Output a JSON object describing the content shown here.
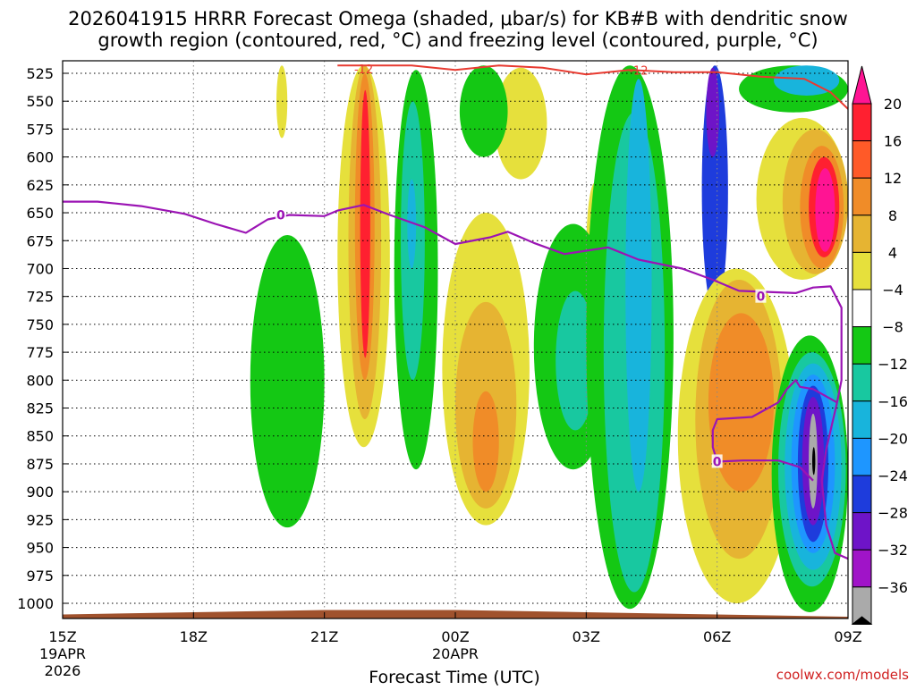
{
  "chart_data": {
    "type": "heatmap",
    "title": {
      "line1": "2026041915 HRRR Forecast Omega (shaded, μbar/s) for KB#B with dendritic snow",
      "line2": "growth region (contoured, red, °C) and freezing level (contoured, purple, °C)"
    },
    "xlabel": "Forecast Time (UTC)",
    "credit": "coolwx.com/models",
    "x_range_hours": [
      0,
      18
    ],
    "y_range_mb": [
      518,
      1015
    ],
    "y_ticks": [
      {
        "p": 525,
        "label": "525"
      },
      {
        "p": 550,
        "label": "550"
      },
      {
        "p": 575,
        "label": "575"
      },
      {
        "p": 600,
        "label": "600"
      },
      {
        "p": 625,
        "label": "625"
      },
      {
        "p": 650,
        "label": "650"
      },
      {
        "p": 675,
        "label": "675"
      },
      {
        "p": 700,
        "label": "700"
      },
      {
        "p": 725,
        "label": "725"
      },
      {
        "p": 750,
        "label": "750"
      },
      {
        "p": 775,
        "label": "775"
      },
      {
        "p": 800,
        "label": "800"
      },
      {
        "p": 825,
        "label": "825"
      },
      {
        "p": 850,
        "label": "850"
      },
      {
        "p": 875,
        "label": "875"
      },
      {
        "p": 900,
        "label": "900"
      },
      {
        "p": 925,
        "label": "925"
      },
      {
        "p": 950,
        "label": "950"
      },
      {
        "p": 975,
        "label": "975"
      },
      {
        "p": 1000,
        "label": "1000"
      }
    ],
    "x_ticks": [
      {
        "h": 0,
        "label": "15Z",
        "date": "19APR",
        "year": "2026"
      },
      {
        "h": 3,
        "label": "18Z"
      },
      {
        "h": 6,
        "label": "21Z"
      },
      {
        "h": 9,
        "label": "00Z",
        "date": "20APR"
      },
      {
        "h": 12,
        "label": "03Z"
      },
      {
        "h": 15,
        "label": "06Z"
      },
      {
        "h": 18,
        "label": "09Z"
      }
    ],
    "colorbar": {
      "colors": [
        "#ff1493",
        "#ff2030",
        "#ff5a28",
        "#f08c28",
        "#e6b432",
        "#e6e03c",
        "#ffffff",
        "#14c814",
        "#18c8a0",
        "#18b4dc",
        "#1e96ff",
        "#1e3cdc",
        "#6e14c8",
        "#a014c8",
        "#aaaaaa",
        "#000000"
      ],
      "labels": [
        "20",
        "16",
        "12",
        "8",
        "4",
        "−4",
        "−8",
        "−12",
        "−16",
        "−20",
        "−24",
        "−28",
        "−32",
        "−36"
      ]
    },
    "omega_regions": [
      {
        "level": 4,
        "color": "#e6e03c",
        "h": [
          4.9,
          5.15
        ],
        "p": [
          518,
          583
        ]
      },
      {
        "level": 4,
        "color": "#e6e03c",
        "h": [
          6.3,
          7.5
        ],
        "p": [
          518,
          860
        ]
      },
      {
        "level": 8,
        "color": "#e6b432",
        "h": [
          6.55,
          7.3
        ],
        "p": [
          518,
          835
        ]
      },
      {
        "level": 12,
        "color": "#f08c28",
        "h": [
          6.7,
          7.15
        ],
        "p": [
          525,
          800
        ]
      },
      {
        "level": 16,
        "color": "#ff2030",
        "h": [
          6.82,
          7.05
        ],
        "p": [
          540,
          780
        ]
      },
      {
        "level": 4,
        "color": "#e6e03c",
        "h": [
          9.9,
          11.1
        ],
        "p": [
          520,
          620
        ]
      },
      {
        "level": 4,
        "color": "#e6e03c",
        "h": [
          12.0,
          12.4
        ],
        "p": [
          623,
          745
        ]
      },
      {
        "level": -4,
        "color": "#14c814",
        "h": [
          7.6,
          8.6
        ],
        "p": [
          522,
          880
        ]
      },
      {
        "level": -8,
        "color": "#18c8a0",
        "h": [
          7.75,
          8.3
        ],
        "p": [
          550,
          800
        ]
      },
      {
        "level": -12,
        "color": "#18b4dc",
        "h": [
          7.9,
          8.1
        ],
        "p": [
          620,
          700
        ]
      },
      {
        "level": -4,
        "color": "#14c814",
        "h": [
          9.1,
          10.2
        ],
        "p": [
          518,
          600
        ]
      },
      {
        "level": -4,
        "color": "#14c814",
        "h": [
          4.3,
          6.0
        ],
        "p": [
          670,
          932
        ]
      },
      {
        "level": 4,
        "color": "#e6e03c",
        "h": [
          8.7,
          10.7
        ],
        "p": [
          650,
          930
        ]
      },
      {
        "level": 8,
        "color": "#e6b432",
        "h": [
          9.0,
          10.4
        ],
        "p": [
          730,
          915
        ]
      },
      {
        "level": 12,
        "color": "#f08c28",
        "h": [
          9.4,
          10.0
        ],
        "p": [
          810,
          900
        ]
      },
      {
        "level": -4,
        "color": "#14c814",
        "h": [
          10.8,
          12.6
        ],
        "p": [
          660,
          880
        ]
      },
      {
        "level": -8,
        "color": "#18c8a0",
        "h": [
          11.3,
          12.2
        ],
        "p": [
          720,
          845
        ]
      },
      {
        "level": -4,
        "color": "#14c814",
        "h": [
          12.0,
          14.0
        ],
        "p": [
          518,
          1005
        ]
      },
      {
        "level": -8,
        "color": "#18c8a0",
        "h": [
          12.4,
          13.8
        ],
        "p": [
          560,
          990
        ]
      },
      {
        "level": -12,
        "color": "#18b4dc",
        "h": [
          12.9,
          13.5
        ],
        "p": [
          530,
          900
        ]
      },
      {
        "level": -20,
        "color": "#1e3cdc",
        "h": [
          14.65,
          15.25
        ],
        "p": [
          518,
          740
        ]
      },
      {
        "level": -28,
        "color": "#6e14c8",
        "h": [
          14.75,
          15.05
        ],
        "p": [
          520,
          600
        ]
      },
      {
        "level": 4,
        "color": "#e6e03c",
        "h": [
          14.1,
          16.8
        ],
        "p": [
          700,
          1000
        ]
      },
      {
        "level": 8,
        "color": "#e6b432",
        "h": [
          14.5,
          16.5
        ],
        "p": [
          710,
          960
        ]
      },
      {
        "level": 12,
        "color": "#f08c28",
        "h": [
          14.8,
          16.3
        ],
        "p": [
          740,
          900
        ]
      },
      {
        "level": 16,
        "color": "#ff2030",
        "h": [
          16.55,
          16.95
        ],
        "p": [
          800,
          855
        ]
      },
      {
        "level": -4,
        "color": "#14c814",
        "h": [
          15.5,
          18.0
        ],
        "p": [
          518,
          560
        ]
      },
      {
        "level": -12,
        "color": "#18b4dc",
        "h": [
          16.3,
          17.8
        ],
        "p": [
          518,
          545
        ]
      },
      {
        "level": 4,
        "color": "#e6e03c",
        "h": [
          15.9,
          18.0
        ],
        "p": [
          565,
          710
        ]
      },
      {
        "level": 8,
        "color": "#e6b432",
        "h": [
          16.5,
          18.0
        ],
        "p": [
          575,
          705
        ]
      },
      {
        "level": 12,
        "color": "#f08c28",
        "h": [
          16.9,
          17.9
        ],
        "p": [
          590,
          700
        ]
      },
      {
        "level": 16,
        "color": "#ff2030",
        "h": [
          17.1,
          17.8
        ],
        "p": [
          600,
          690
        ]
      },
      {
        "level": 20,
        "color": "#ff1493",
        "h": [
          17.25,
          17.7
        ],
        "p": [
          610,
          685
        ]
      },
      {
        "level": -4,
        "color": "#14c814",
        "h": [
          16.25,
          18.0
        ],
        "p": [
          760,
          1008
        ]
      },
      {
        "level": -8,
        "color": "#18c8a0",
        "h": [
          16.4,
          17.95
        ],
        "p": [
          775,
          985
        ]
      },
      {
        "level": -12,
        "color": "#18b4dc",
        "h": [
          16.55,
          17.85
        ],
        "p": [
          785,
          970
        ]
      },
      {
        "level": -16,
        "color": "#1e96ff",
        "h": [
          16.7,
          17.7
        ],
        "p": [
          795,
          955
        ]
      },
      {
        "level": -20,
        "color": "#1e3cdc",
        "h": [
          16.85,
          17.55
        ],
        "p": [
          805,
          945
        ]
      },
      {
        "level": -28,
        "color": "#6e14c8",
        "h": [
          16.95,
          17.45
        ],
        "p": [
          815,
          930
        ]
      },
      {
        "level": -32,
        "color": "#aaaaaa",
        "h": [
          17.1,
          17.3
        ],
        "p": [
          830,
          915
        ]
      },
      {
        "level": -36,
        "color": "#000000",
        "h": [
          17.18,
          17.25
        ],
        "p": [
          860,
          885
        ]
      }
    ],
    "dendritic_contour": {
      "color": "#e83a30",
      "label": "-12",
      "label_points": [
        {
          "h": 6.9,
          "p": 521
        },
        {
          "h": 13.2,
          "p": 522
        }
      ],
      "points": [
        {
          "h": 6.3,
          "p": 518
        },
        {
          "h": 7.0,
          "p": 518
        },
        {
          "h": 8.0,
          "p": 518
        },
        {
          "h": 9.0,
          "p": 522
        },
        {
          "h": 10.0,
          "p": 518
        },
        {
          "h": 11.0,
          "p": 520
        },
        {
          "h": 12.0,
          "p": 526
        },
        {
          "h": 13.0,
          "p": 522
        },
        {
          "h": 14.0,
          "p": 524
        },
        {
          "h": 15.0,
          "p": 524
        },
        {
          "h": 16.0,
          "p": 528
        },
        {
          "h": 17.0,
          "p": 530
        },
        {
          "h": 17.6,
          "p": 542
        },
        {
          "h": 18.0,
          "p": 557
        }
      ]
    },
    "freezing_level": {
      "color": "#9b14b4",
      "label": "0",
      "label_points": [
        {
          "h": 5.0,
          "p": 652
        },
        {
          "h": 16.0,
          "p": 725
        },
        {
          "h": 15.0,
          "p": 873
        }
      ],
      "main": [
        {
          "h": 0,
          "p": 640
        },
        {
          "h": 0.8,
          "p": 640
        },
        {
          "h": 1.8,
          "p": 644
        },
        {
          "h": 2.8,
          "p": 651
        },
        {
          "h": 3.5,
          "p": 660
        },
        {
          "h": 4.2,
          "p": 668
        },
        {
          "h": 4.7,
          "p": 656
        },
        {
          "h": 5.2,
          "p": 652
        },
        {
          "h": 6.0,
          "p": 653
        },
        {
          "h": 6.3,
          "p": 648
        },
        {
          "h": 6.9,
          "p": 643
        },
        {
          "h": 7.5,
          "p": 652
        },
        {
          "h": 8.3,
          "p": 663
        },
        {
          "h": 9.0,
          "p": 678
        },
        {
          "h": 9.8,
          "p": 672
        },
        {
          "h": 10.2,
          "p": 667
        },
        {
          "h": 10.8,
          "p": 677
        },
        {
          "h": 11.5,
          "p": 687
        },
        {
          "h": 12.0,
          "p": 684
        },
        {
          "h": 12.5,
          "p": 681
        },
        {
          "h": 13.2,
          "p": 692
        },
        {
          "h": 14.2,
          "p": 700
        },
        {
          "h": 14.9,
          "p": 710
        },
        {
          "h": 15.5,
          "p": 720
        },
        {
          "h": 16.8,
          "p": 722
        },
        {
          "h": 17.2,
          "p": 717
        },
        {
          "h": 17.6,
          "p": 716
        },
        {
          "h": 17.85,
          "p": 735
        },
        {
          "h": 17.85,
          "p": 800
        },
        {
          "h": 17.75,
          "p": 820
        }
      ],
      "loop": [
        {
          "h": 17.75,
          "p": 820
        },
        {
          "h": 17.2,
          "p": 808
        },
        {
          "h": 16.9,
          "p": 806
        },
        {
          "h": 16.8,
          "p": 800
        },
        {
          "h": 16.6,
          "p": 808
        },
        {
          "h": 16.4,
          "p": 820
        },
        {
          "h": 15.8,
          "p": 833
        },
        {
          "h": 15.0,
          "p": 835
        },
        {
          "h": 14.9,
          "p": 845
        },
        {
          "h": 14.9,
          "p": 860
        },
        {
          "h": 15.0,
          "p": 873
        },
        {
          "h": 15.6,
          "p": 872
        },
        {
          "h": 16.4,
          "p": 872
        },
        {
          "h": 16.9,
          "p": 878
        },
        {
          "h": 17.2,
          "p": 890
        }
      ],
      "tail": [
        {
          "h": 17.75,
          "p": 820
        },
        {
          "h": 17.5,
          "p": 862
        },
        {
          "h": 17.4,
          "p": 890
        },
        {
          "h": 17.5,
          "p": 930
        },
        {
          "h": 17.7,
          "p": 955
        },
        {
          "h": 18.0,
          "p": 960
        }
      ]
    },
    "terrain": {
      "color": "#a0522d",
      "points": [
        {
          "h": 0,
          "p": 1010
        },
        {
          "h": 3,
          "p": 1008
        },
        {
          "h": 6,
          "p": 1006
        },
        {
          "h": 9,
          "p": 1006
        },
        {
          "h": 12,
          "p": 1008
        },
        {
          "h": 15,
          "p": 1010
        },
        {
          "h": 18,
          "p": 1012
        }
      ]
    }
  }
}
